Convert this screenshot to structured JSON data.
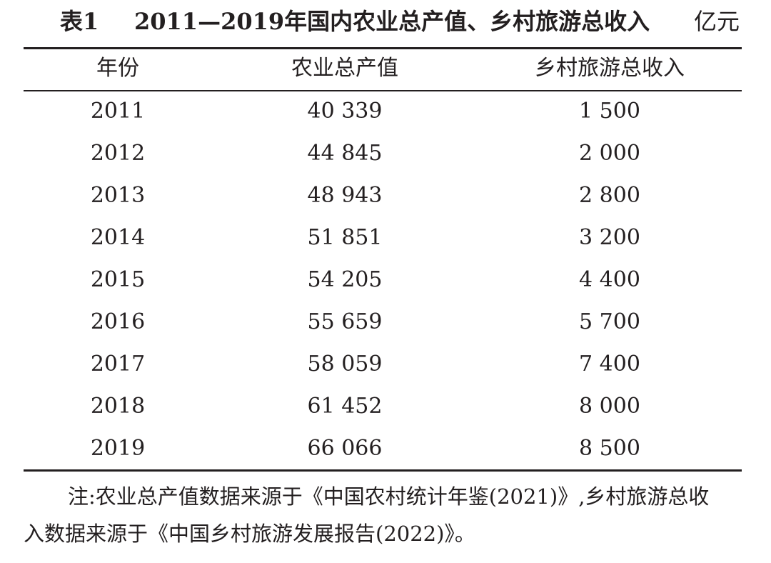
{
  "table": {
    "number": "表1",
    "title": "2011—2019年国内农业总产值、乡村旅游总收入",
    "unit": "亿元",
    "headers": [
      "年份",
      "农业总产值",
      "乡村旅游总收入"
    ],
    "rows": [
      [
        "2011",
        "40 339",
        "1 500"
      ],
      [
        "2012",
        "44 845",
        "2 000"
      ],
      [
        "2013",
        "48 943",
        "2 800"
      ],
      [
        "2014",
        "51 851",
        "3 200"
      ],
      [
        "2015",
        "54 205",
        "4 400"
      ],
      [
        "2016",
        "55 659",
        "5 700"
      ],
      [
        "2017",
        "58 059",
        "7 400"
      ],
      [
        "2018",
        "61 452",
        "8 000"
      ],
      [
        "2019",
        "66 066",
        "8 500"
      ]
    ]
  },
  "note": {
    "line1": "注:农业总产值数据来源于《中国农村统计年鉴(2021)》,乡村旅游总收",
    "line2": "入数据来源于《中国乡村旅游发展报告(2022)》。"
  }
}
